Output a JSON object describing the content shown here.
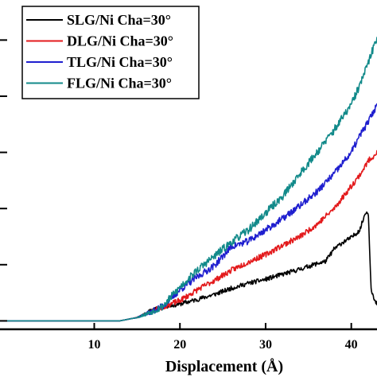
{
  "chart_data": {
    "type": "line",
    "title": "",
    "xlabel": "Displacement (Å)",
    "ylabel": "",
    "xlim": [
      -1,
      43
    ],
    "ylim": [
      -0.15,
      5.6
    ],
    "x_ticks": [
      10,
      20,
      30,
      40
    ],
    "x_tick_labels": [
      "10",
      "20",
      "30",
      "40"
    ],
    "y_ticks": [
      0,
      1,
      2,
      3,
      4,
      5
    ],
    "grid": false,
    "legend_position": "top-left",
    "series": [
      {
        "name": "SLG/Ni Cha=30°",
        "color": "#000000",
        "noise": 0.04,
        "seed": 11,
        "points": [
          [
            -1,
            0
          ],
          [
            13,
            0
          ],
          [
            15,
            0.06
          ],
          [
            16.5,
            0.18
          ],
          [
            18,
            0.25
          ],
          [
            20,
            0.3
          ],
          [
            22,
            0.38
          ],
          [
            24,
            0.47
          ],
          [
            26,
            0.58
          ],
          [
            28,
            0.67
          ],
          [
            30,
            0.74
          ],
          [
            32,
            0.83
          ],
          [
            34,
            0.92
          ],
          [
            36,
            1.02
          ],
          [
            37,
            1.06
          ],
          [
            38,
            1.28
          ],
          [
            39,
            1.4
          ],
          [
            40,
            1.48
          ],
          [
            41,
            1.62
          ],
          [
            41.7,
            1.95
          ],
          [
            42,
            1.9
          ],
          [
            42.3,
            0.6
          ],
          [
            42.7,
            0.35
          ],
          [
            43,
            0.3
          ]
        ]
      },
      {
        "name": "DLG/Ni Cha=30°",
        "color": "#e31a1c",
        "noise": 0.05,
        "seed": 23,
        "points": [
          [
            -1,
            0
          ],
          [
            13,
            0
          ],
          [
            15,
            0.06
          ],
          [
            16.5,
            0.16
          ],
          [
            18,
            0.25
          ],
          [
            20,
            0.36
          ],
          [
            22,
            0.55
          ],
          [
            24,
            0.72
          ],
          [
            26,
            0.9
          ],
          [
            28,
            1.05
          ],
          [
            30,
            1.18
          ],
          [
            32,
            1.35
          ],
          [
            34,
            1.5
          ],
          [
            36,
            1.72
          ],
          [
            38,
            2.0
          ],
          [
            40,
            2.4
          ],
          [
            41,
            2.6
          ],
          [
            42,
            2.85
          ],
          [
            43,
            3.0
          ]
        ]
      },
      {
        "name": "TLG/Ni Cha=30°",
        "color": "#1f1fcf",
        "noise": 0.06,
        "seed": 37,
        "points": [
          [
            -1,
            0
          ],
          [
            13,
            0
          ],
          [
            15,
            0.06
          ],
          [
            16.5,
            0.15
          ],
          [
            18,
            0.26
          ],
          [
            20,
            0.55
          ],
          [
            22,
            0.78
          ],
          [
            24,
            0.98
          ],
          [
            26,
            1.32
          ],
          [
            28,
            1.42
          ],
          [
            30,
            1.62
          ],
          [
            32,
            1.82
          ],
          [
            34,
            2.05
          ],
          [
            36,
            2.3
          ],
          [
            38,
            2.62
          ],
          [
            40,
            3.0
          ],
          [
            41,
            3.3
          ],
          [
            42,
            3.55
          ],
          [
            43,
            3.85
          ]
        ]
      },
      {
        "name": "FLG/Ni Cha=30°",
        "color": "#128a8a",
        "noise": 0.07,
        "seed": 53,
        "points": [
          [
            -1,
            0
          ],
          [
            13,
            0
          ],
          [
            15,
            0.06
          ],
          [
            16.5,
            0.15
          ],
          [
            18,
            0.26
          ],
          [
            20,
            0.6
          ],
          [
            22,
            0.9
          ],
          [
            24,
            1.15
          ],
          [
            26,
            1.4
          ],
          [
            28,
            1.62
          ],
          [
            30,
            1.92
          ],
          [
            32,
            2.22
          ],
          [
            34,
            2.62
          ],
          [
            36,
            3.0
          ],
          [
            38,
            3.4
          ],
          [
            40,
            3.85
          ],
          [
            41,
            4.2
          ],
          [
            42,
            4.6
          ],
          [
            43,
            5.05
          ]
        ]
      }
    ]
  }
}
